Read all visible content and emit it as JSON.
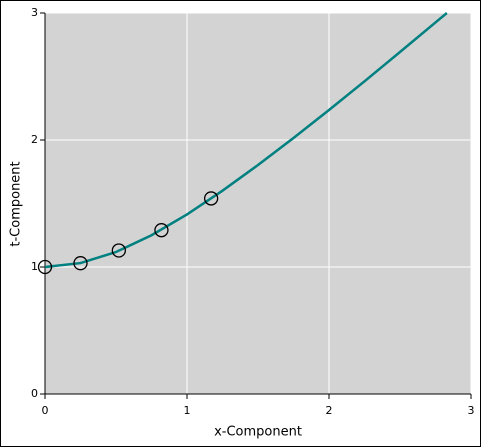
{
  "chart_data": {
    "type": "line",
    "xlabel": "x-Component",
    "ylabel": "t-Component",
    "xlim": [
      0,
      3
    ],
    "ylim": [
      0,
      3
    ],
    "xticks": [
      0,
      1,
      2,
      3
    ],
    "yticks": [
      0,
      1,
      2,
      3
    ],
    "grid": true,
    "background": "#d3d3d3",
    "series": [
      {
        "style": "line",
        "color": "#008080",
        "x": [
          0,
          0.25,
          0.5,
          0.75,
          1,
          1.25,
          1.5,
          1.75,
          2,
          2.25,
          2.5,
          2.75,
          2.83
        ],
        "values": [
          1,
          1.031,
          1.118,
          1.25,
          1.414,
          1.601,
          1.803,
          2.016,
          2.236,
          2.462,
          2.693,
          2.926,
          3.0
        ]
      },
      {
        "style": "markers",
        "color": "#000000",
        "x": [
          0,
          0.25,
          0.52,
          0.82,
          1.17
        ],
        "values": [
          1,
          1.03,
          1.13,
          1.29,
          1.54
        ]
      }
    ]
  }
}
